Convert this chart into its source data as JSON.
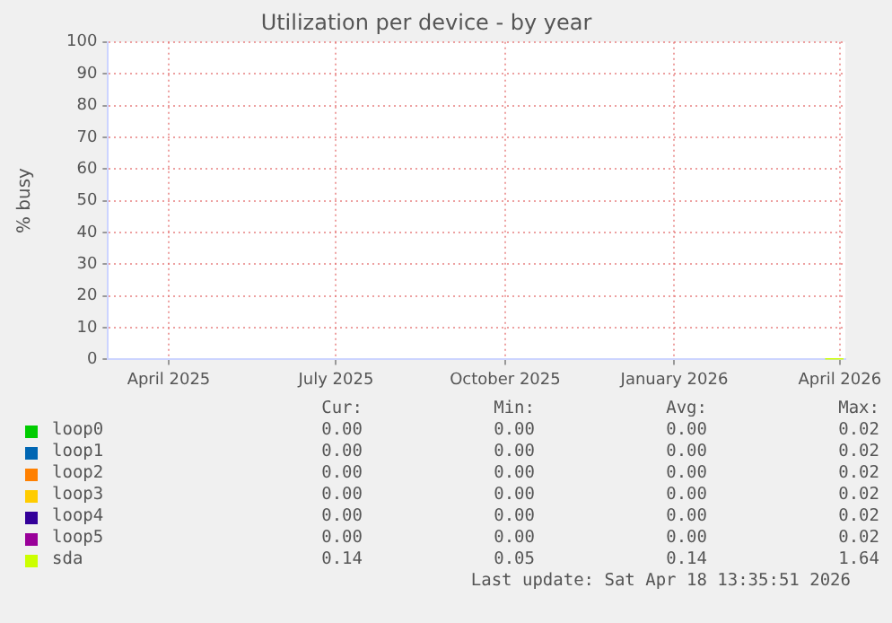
{
  "chart_data": {
    "type": "line",
    "title": "Utilization per device - by year",
    "ylabel": "% busy",
    "x": [
      "2026-03-24",
      "2026-04-01",
      "2026-04-03"
    ],
    "series": [
      {
        "name": "loop0",
        "color": "#00cc00",
        "values": [
          null,
          null,
          null
        ]
      },
      {
        "name": "loop1",
        "color": "#0066b3",
        "values": [
          null,
          null,
          null
        ]
      },
      {
        "name": "loop2",
        "color": "#ff8000",
        "values": [
          null,
          null,
          null
        ]
      },
      {
        "name": "loop3",
        "color": "#ffcc00",
        "values": [
          null,
          null,
          null
        ]
      },
      {
        "name": "loop4",
        "color": "#330099",
        "values": [
          null,
          null,
          null
        ]
      },
      {
        "name": "loop5",
        "color": "#990099",
        "values": [
          null,
          null,
          null
        ]
      },
      {
        "name": "sda",
        "color": "#ccff00",
        "values": [
          0,
          0,
          0
        ]
      }
    ],
    "xlim": [
      "2025-02-27",
      "2026-04-04"
    ],
    "xticks": [
      {
        "value": "2025-04-01",
        "label": "April 2025"
      },
      {
        "value": "2025-07-01",
        "label": "July 2025"
      },
      {
        "value": "2025-10-01",
        "label": "October 2025"
      },
      {
        "value": "2026-01-01",
        "label": "January 2026"
      },
      {
        "value": "2026-04-01",
        "label": "April 2026"
      }
    ],
    "ylim": [
      0,
      100
    ],
    "yticks": [
      0,
      10,
      20,
      30,
      40,
      50,
      60,
      70,
      80,
      90,
      100
    ],
    "grid": true,
    "legend": "bottom",
    "marker": "none",
    "line_style": "solid",
    "annotations": [
      "Cur:",
      "Min:",
      "Avg:",
      "Max:",
      "0.00",
      "0.00",
      "0.00",
      "0.02",
      "0.00",
      "0.00",
      "0.00",
      "0.02",
      "0.00",
      "0.00",
      "0.00",
      "0.02",
      "0.00",
      "0.00",
      "0.00",
      "0.02",
      "0.00",
      "0.00",
      "0.00",
      "0.02",
      "0.00",
      "0.00",
      "0.00",
      "0.02",
      "0.14",
      "0.05",
      "0.14",
      "1.64",
      "Last update: Sat Apr 18 13:35:51 2026"
    ]
  }
}
